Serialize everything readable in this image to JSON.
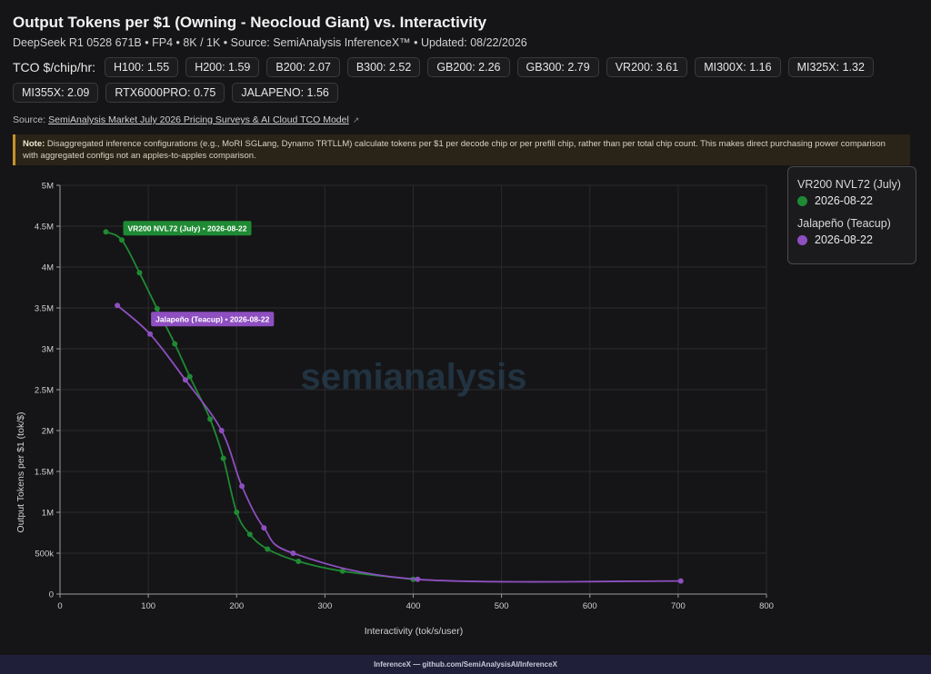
{
  "header": {
    "title": "Output Tokens per $1 (Owning - Neocloud Giant) vs. Interactivity",
    "subtitle": "DeepSeek R1 0528 671B • FP4 • 8K / 1K • Source: SemiAnalysis InferenceX™ • Updated: 08/22/2026"
  },
  "tco": {
    "label": "TCO $/chip/hr:",
    "chips": [
      "H100: 1.55",
      "H200: 1.59",
      "B200: 2.07",
      "B300: 2.52",
      "GB200: 2.26",
      "GB300: 2.79",
      "VR200: 3.61",
      "MI300X: 1.16",
      "MI325X: 1.32",
      "MI355X: 2.09",
      "RTX6000PRO: 0.75",
      "JALAPENO: 1.56"
    ]
  },
  "source": {
    "prefix": "Source: ",
    "link": "SemiAnalysis Market July 2026 Pricing Surveys & AI Cloud TCO Model",
    "icon": "external-link-icon"
  },
  "note": {
    "label": "Note:",
    "text": "Disaggregated inference configurations (e.g., MoRI SGLang, Dynamo TRTLLM) calculate tokens per $1 per decode chip or per prefill chip, rather than per total chip count. This makes direct purchasing power comparison with aggregated configs not an apples-to-apples comparison."
  },
  "legend": {
    "items": [
      {
        "name": "VR200 NVL72 (July)",
        "date": "2026-08-22",
        "color": "#1f8a34"
      },
      {
        "name": "Jalapeño (Teacup)",
        "date": "2026-08-22",
        "color": "#8e4fc1"
      }
    ]
  },
  "watermark": "semianalysis",
  "footer": "InferenceX — github.com/SemiAnalysisAI/InferenceX",
  "chart_data": {
    "type": "line",
    "title": "Output Tokens per $1 (Owning - Neocloud Giant) vs. Interactivity",
    "xlabel": "Interactivity (tok/s/user)",
    "ylabel": "Output Tokens per $1 (tok/$)",
    "xlim": [
      0,
      800
    ],
    "ylim": [
      0,
      5000000
    ],
    "xticks": [
      0,
      100,
      200,
      300,
      400,
      500,
      600,
      700,
      800
    ],
    "xtick_labels": [
      "0",
      "100",
      "200",
      "300",
      "400",
      "500",
      "600",
      "700",
      "800"
    ],
    "yticks": [
      0,
      500000,
      1000000,
      1500000,
      2000000,
      2500000,
      3000000,
      3500000,
      4000000,
      4500000,
      5000000
    ],
    "ytick_labels": [
      "0",
      "500k",
      "1M",
      "1.5M",
      "2M",
      "2.5M",
      "3M",
      "3.5M",
      "4M",
      "4.5M",
      "5M"
    ],
    "grid": true,
    "legend_position": "top-right",
    "series": [
      {
        "name": "VR200 NVL72 (July)",
        "color": "#1f8a34",
        "label": "VR200 NVL72 (July) • 2026-08-22",
        "points": [
          [
            52,
            4430000
          ],
          [
            70,
            4330000
          ],
          [
            90,
            3930000
          ],
          [
            110,
            3490000
          ],
          [
            130,
            3060000
          ],
          [
            147,
            2660000
          ],
          [
            170,
            2140000
          ],
          [
            185,
            1660000
          ],
          [
            200,
            1000000
          ],
          [
            215,
            730000
          ],
          [
            235,
            550000
          ],
          [
            270,
            400000
          ],
          [
            320,
            280000
          ],
          [
            400,
            180000
          ]
        ]
      },
      {
        "name": "Jalapeño (Teacup)",
        "color": "#8e4fc1",
        "label": "Jalapeño (Teacup) • 2026-08-22",
        "points": [
          [
            65,
            3530000
          ],
          [
            102,
            3180000
          ],
          [
            142,
            2620000
          ],
          [
            183,
            2000000
          ],
          [
            206,
            1320000
          ],
          [
            231,
            810000
          ],
          [
            264,
            500000
          ],
          [
            405,
            180000
          ],
          [
            703,
            160000
          ]
        ]
      }
    ]
  }
}
